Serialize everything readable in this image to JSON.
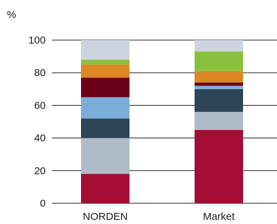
{
  "chart_data": {
    "type": "bar",
    "stacked": true,
    "categories": [
      "NORDEN",
      "Market"
    ],
    "ylabel": "%",
    "ylim": [
      0,
      100
    ],
    "yticks": [
      0,
      20,
      40,
      60,
      80,
      100
    ],
    "grid": true,
    "series": [
      {
        "color": "#a50d35",
        "values": [
          18,
          45
        ]
      },
      {
        "color": "#b0bcc8",
        "values": [
          22,
          11
        ]
      },
      {
        "color": "#2e4457",
        "values": [
          12,
          14
        ]
      },
      {
        "color": "#7aaed8",
        "values": [
          13,
          2
        ]
      },
      {
        "color": "#6b0019",
        "values": [
          12,
          2
        ]
      },
      {
        "color": "#db8824",
        "values": [
          8,
          7
        ]
      },
      {
        "color": "#89c13c",
        "values": [
          3,
          12
        ]
      },
      {
        "color": "#cdd4df",
        "values": [
          12,
          7
        ]
      }
    ]
  }
}
